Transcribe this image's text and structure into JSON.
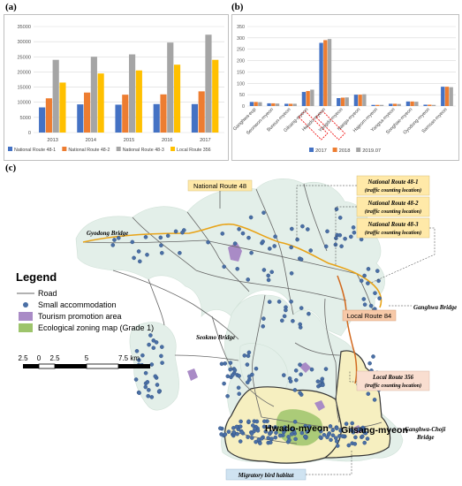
{
  "panel_labels": {
    "a": "(a)",
    "b": "(b)",
    "c": "(c)"
  },
  "chart_data": [
    {
      "type": "bar",
      "categories": [
        "2013",
        "2014",
        "2015",
        "2016",
        "2017"
      ],
      "series": [
        {
          "name": "National Route 48-1",
          "color": "#4472C4",
          "values": [
            8300,
            9300,
            9200,
            9400,
            9400
          ]
        },
        {
          "name": "National Route 48-2",
          "color": "#ED7D31",
          "values": [
            11300,
            13200,
            12500,
            12600,
            13600
          ]
        },
        {
          "name": "National Route 48-3",
          "color": "#A5A5A5",
          "values": [
            24000,
            25000,
            25800,
            29700,
            32300
          ]
        },
        {
          "name": "Local Route 356",
          "color": "#FFC000",
          "values": [
            16500,
            19500,
            20500,
            22400,
            24000
          ]
        }
      ],
      "yticks": [
        0,
        5000,
        10000,
        15000,
        20000,
        25000,
        30000,
        35000
      ],
      "ylim": [
        0,
        35000
      ],
      "grid": true,
      "legend_position": "bottom"
    },
    {
      "type": "bar",
      "categories": [
        "Ganghwa-eup",
        "Seonwon-myeon",
        "Bureun-myeon",
        "Gilsang-myeon",
        "Hwado-myeon",
        "Yangdo-myeon",
        "Naega-myeon",
        "Hajeom-myeon",
        "Yangsa-myeon",
        "Songhae-myeon",
        "Gyodong-myeon",
        "Samsan-myeon"
      ],
      "highlighted_categories": [
        "Gilsang-myeon",
        "Hwado-myeon"
      ],
      "series": [
        {
          "name": "2017",
          "color": "#4472C4",
          "values": [
            18,
            12,
            10,
            62,
            278,
            35,
            50,
            5,
            10,
            20,
            6,
            85
          ]
        },
        {
          "name": "2018",
          "color": "#ED7D31",
          "values": [
            18,
            12,
            10,
            66,
            290,
            37,
            50,
            5,
            10,
            20,
            6,
            85
          ]
        },
        {
          "name": "2019.07",
          "color": "#A5A5A5",
          "values": [
            17,
            11,
            10,
            72,
            295,
            38,
            52,
            5,
            9,
            19,
            5,
            83
          ]
        }
      ],
      "yticks": [
        0,
        50,
        100,
        150,
        200,
        250,
        300,
        350
      ],
      "ylim": [
        0,
        350
      ],
      "grid": true,
      "legend_position": "bottom"
    }
  ],
  "map": {
    "callouts": {
      "nr48": "National Route 48",
      "nr48_1": "National Route 48-1",
      "nr48_2": "National Route 48-2",
      "nr48_3": "National Route 48-3",
      "counting": "(traffic counting location)",
      "lr84": "Local Route 84",
      "lr356": "Local Route 356",
      "migratory": "Migratory bird habitat"
    },
    "places": {
      "gyodong": "Gyodong Bridge",
      "ganghwa": "Ganghwa Bridge",
      "seokmo": "Seokmo Bridge",
      "choji1": "Ganghwa-Choji",
      "choji2": "Bridge",
      "hwado": "Hwado-myeon",
      "gilsang": "Gilsang-myeon"
    },
    "legend": {
      "title": "Legend",
      "road": "Road",
      "accommodation": "Small accommodation",
      "tourism": "Tourism promotion area",
      "ecological": "Ecological zoning map (Grade 1)"
    },
    "scale": {
      "labels": [
        "2.5",
        "0",
        "2.5",
        "5",
        "7.5 km"
      ]
    },
    "colors": {
      "island": "#e3efe9",
      "road": "#666666",
      "route": "#e8a317",
      "local": "#d2691e",
      "dot": "#4a6fa5",
      "tourism": "#a98bc6",
      "ecological": "#9dc46b",
      "district": "#f6efc0"
    }
  }
}
